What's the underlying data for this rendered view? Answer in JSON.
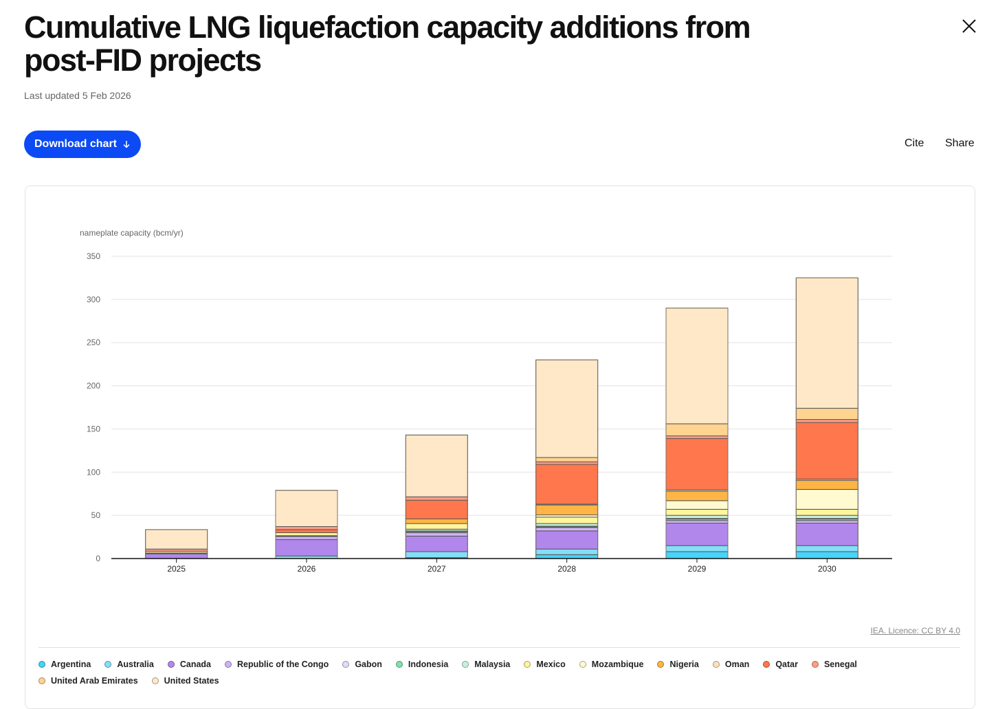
{
  "header": {
    "title": "Cumulative LNG liquefaction capacity additions from post-FID projects",
    "updated": "Last updated 5 Feb 2026",
    "download_label": "Download chart",
    "cite_label": "Cite",
    "share_label": "Share",
    "close_icon": "close-icon",
    "download_icon": "arrow-down-icon"
  },
  "source": "IEA. Licence: CC BY 4.0",
  "chart_data": {
    "type": "bar",
    "stacked": true,
    "title": "Cumulative LNG liquefaction capacity additions from post-FID projects",
    "ylabel": "nameplate capacity (bcm/yr)",
    "xlabel": "",
    "ylim": [
      0,
      350
    ],
    "yticks": [
      0,
      50,
      100,
      150,
      200,
      250,
      300,
      350
    ],
    "grid": true,
    "legend_placement": "bottom",
    "categories": [
      "2025",
      "2026",
      "2027",
      "2028",
      "2029",
      "2030"
    ],
    "series": [
      {
        "name": "Argentina",
        "color": "#45d4fa",
        "values": [
          0,
          0,
          1,
          4.5,
          8,
          8
        ]
      },
      {
        "name": "Australia",
        "color": "#85def7",
        "values": [
          0,
          3,
          7,
          6.5,
          7,
          7
        ]
      },
      {
        "name": "Canada",
        "color": "#b187ec",
        "values": [
          5.5,
          19,
          18,
          21,
          26,
          26
        ]
      },
      {
        "name": "Republic of the Congo",
        "color": "#cdb4f5",
        "values": [
          0.5,
          3.5,
          4,
          4,
          3,
          3
        ]
      },
      {
        "name": "Gabon",
        "color": "#e4dafa",
        "values": [
          0,
          0.5,
          1,
          0.5,
          1.5,
          1.5
        ]
      },
      {
        "name": "Indonesia",
        "color": "#7fe0b0",
        "values": [
          0.5,
          0.5,
          1,
          1,
          1,
          1
        ]
      },
      {
        "name": "Malaysia",
        "color": "#c6f2dd",
        "values": [
          0,
          0,
          2,
          3,
          3.5,
          3.5
        ]
      },
      {
        "name": "Mexico",
        "color": "#fff59d",
        "values": [
          2,
          3.5,
          6.5,
          7.5,
          7,
          7
        ]
      },
      {
        "name": "Mozambique",
        "color": "#fffacf",
        "values": [
          0,
          0,
          0,
          2.5,
          10,
          23
        ]
      },
      {
        "name": "Nigeria",
        "color": "#ffb545",
        "values": [
          0,
          0,
          5.5,
          11.5,
          11,
          10.5
        ]
      },
      {
        "name": "Oman",
        "color": "#ffe0bd",
        "values": [
          0,
          0,
          0,
          1,
          1.5,
          1.5
        ]
      },
      {
        "name": "Qatar",
        "color": "#ff774d",
        "values": [
          0,
          3.5,
          21.5,
          46,
          59.5,
          65.5
        ]
      },
      {
        "name": "Senegal",
        "color": "#ff9d85",
        "values": [
          2.5,
          3.5,
          4,
          3,
          3,
          3.5
        ]
      },
      {
        "name": "United Arab Emirates",
        "color": "#ffd390",
        "values": [
          0,
          0,
          0,
          5,
          14,
          13
        ]
      },
      {
        "name": "United States",
        "color": "#ffe8c7",
        "values": [
          22.5,
          42,
          71.5,
          113,
          134,
          151
        ]
      }
    ]
  }
}
